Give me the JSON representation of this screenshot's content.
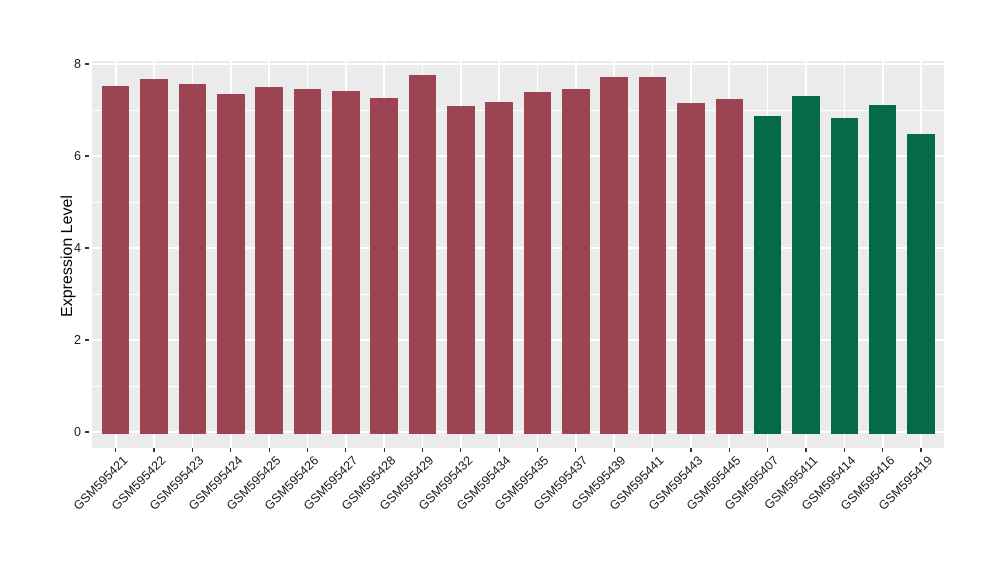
{
  "chart_data": {
    "type": "bar",
    "title": "",
    "xlabel": "",
    "ylabel": "Expression Level",
    "ylim": [
      0,
      8.05
    ],
    "yticks_major": [
      0,
      2,
      4,
      6,
      8
    ],
    "yticks_minor": [
      1,
      3,
      5,
      7
    ],
    "grid": "on",
    "legend": "none",
    "panel_bg_color": "#EBEBEB",
    "grid_color": "#FFFFFF",
    "group_colors": {
      "group1": "#9C4452",
      "group2": "#046B46"
    },
    "bars": [
      {
        "label": "GSM595421",
        "value": 7.52,
        "group": "group1"
      },
      {
        "label": "GSM595422",
        "value": 7.68,
        "group": "group1"
      },
      {
        "label": "GSM595423",
        "value": 7.57,
        "group": "group1"
      },
      {
        "label": "GSM595424",
        "value": 7.35,
        "group": "group1"
      },
      {
        "label": "GSM595425",
        "value": 7.51,
        "group": "group1"
      },
      {
        "label": "GSM595426",
        "value": 7.45,
        "group": "group1"
      },
      {
        "label": "GSM595427",
        "value": 7.42,
        "group": "group1"
      },
      {
        "label": "GSM595428",
        "value": 7.27,
        "group": "group1"
      },
      {
        "label": "GSM595429",
        "value": 7.76,
        "group": "group1"
      },
      {
        "label": "GSM595432",
        "value": 7.09,
        "group": "group1"
      },
      {
        "label": "GSM595434",
        "value": 7.18,
        "group": "group1"
      },
      {
        "label": "GSM595435",
        "value": 7.4,
        "group": "group1"
      },
      {
        "label": "GSM595437",
        "value": 7.45,
        "group": "group1"
      },
      {
        "label": "GSM595439",
        "value": 7.71,
        "group": "group1"
      },
      {
        "label": "GSM595441",
        "value": 7.71,
        "group": "group1"
      },
      {
        "label": "GSM595443",
        "value": 7.16,
        "group": "group1"
      },
      {
        "label": "GSM595445",
        "value": 7.24,
        "group": "group1"
      },
      {
        "label": "GSM595407",
        "value": 6.88,
        "group": "group2"
      },
      {
        "label": "GSM595411",
        "value": 7.31,
        "group": "group2"
      },
      {
        "label": "GSM595414",
        "value": 6.83,
        "group": "group2"
      },
      {
        "label": "GSM595416",
        "value": 7.11,
        "group": "group2"
      },
      {
        "label": "GSM595419",
        "value": 6.48,
        "group": "group2"
      }
    ]
  }
}
